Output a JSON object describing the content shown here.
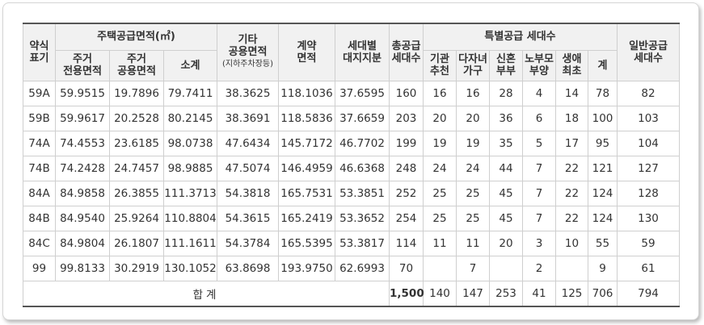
{
  "headers": {
    "type": "약식\n표기",
    "area_group": "주택공급면적(㎡)",
    "exclusive": "주거\n전용면적",
    "shared": "주거\n공용면적",
    "subtotal": "소계",
    "other_shared": "기타\n공용면적",
    "other_shared_note": "(지하주차장등)",
    "contract_area": "계약\n면적",
    "land_share": "세대별\n대지지분",
    "total_supply": "총공급\n세대수",
    "special_group": "특별공급 세대수",
    "institution": "기관\n추천",
    "multi_child": "다자녀\n가구",
    "newlywed": "신혼\n부부",
    "elderly_parent": "노부모\n부양",
    "first_life": "생애\n최초",
    "special_total": "계",
    "general_supply": "일반공급\n세대수"
  },
  "rows": [
    {
      "type": "59A",
      "exclusive": "59.9515",
      "shared": "19.7896",
      "subtotal": "79.7411",
      "other": "38.3625",
      "contract": "118.1036",
      "land": "37.6595",
      "total": "160",
      "inst": "16",
      "multi": "16",
      "newly": "28",
      "elder": "4",
      "first": "14",
      "sum": "78",
      "general": "82"
    },
    {
      "type": "59B",
      "exclusive": "59.9617",
      "shared": "20.2528",
      "subtotal": "80.2145",
      "other": "38.3691",
      "contract": "118.5836",
      "land": "37.6659",
      "total": "203",
      "inst": "20",
      "multi": "20",
      "newly": "36",
      "elder": "6",
      "first": "18",
      "sum": "100",
      "general": "103"
    },
    {
      "type": "74A",
      "exclusive": "74.4553",
      "shared": "23.6185",
      "subtotal": "98.0738",
      "other": "47.6434",
      "contract": "145.7172",
      "land": "46.7702",
      "total": "199",
      "inst": "19",
      "multi": "19",
      "newly": "35",
      "elder": "5",
      "first": "17",
      "sum": "95",
      "general": "104"
    },
    {
      "type": "74B",
      "exclusive": "74.2428",
      "shared": "24.7457",
      "subtotal": "98.9885",
      "other": "47.5074",
      "contract": "146.4959",
      "land": "46.6368",
      "total": "248",
      "inst": "24",
      "multi": "24",
      "newly": "44",
      "elder": "7",
      "first": "22",
      "sum": "121",
      "general": "127"
    },
    {
      "type": "84A",
      "exclusive": "84.9858",
      "shared": "26.3855",
      "subtotal": "111.3713",
      "other": "54.3818",
      "contract": "165.7531",
      "land": "53.3851",
      "total": "252",
      "inst": "25",
      "multi": "25",
      "newly": "45",
      "elder": "7",
      "first": "22",
      "sum": "124",
      "general": "128"
    },
    {
      "type": "84B",
      "exclusive": "84.9540",
      "shared": "25.9264",
      "subtotal": "110.8804",
      "other": "54.3615",
      "contract": "165.2419",
      "land": "53.3652",
      "total": "254",
      "inst": "25",
      "multi": "25",
      "newly": "45",
      "elder": "7",
      "first": "22",
      "sum": "124",
      "general": "130"
    },
    {
      "type": "84C",
      "exclusive": "84.9804",
      "shared": "26.1807",
      "subtotal": "111.1611",
      "other": "54.3784",
      "contract": "165.5395",
      "land": "53.3817",
      "total": "114",
      "inst": "11",
      "multi": "11",
      "newly": "20",
      "elder": "3",
      "first": "10",
      "sum": "55",
      "general": "59"
    },
    {
      "type": "99",
      "exclusive": "99.8133",
      "shared": "30.2919",
      "subtotal": "130.1052",
      "other": "63.8698",
      "contract": "193.9750",
      "land": "62.6993",
      "total": "70",
      "inst": "",
      "multi": "7",
      "newly": "",
      "elder": "2",
      "first": "",
      "sum": "9",
      "general": "61"
    }
  ],
  "totals": {
    "label": "합계",
    "total": "1,500",
    "inst": "140",
    "multi": "147",
    "newly": "253",
    "elder": "41",
    "first": "125",
    "sum": "706",
    "general": "794"
  }
}
